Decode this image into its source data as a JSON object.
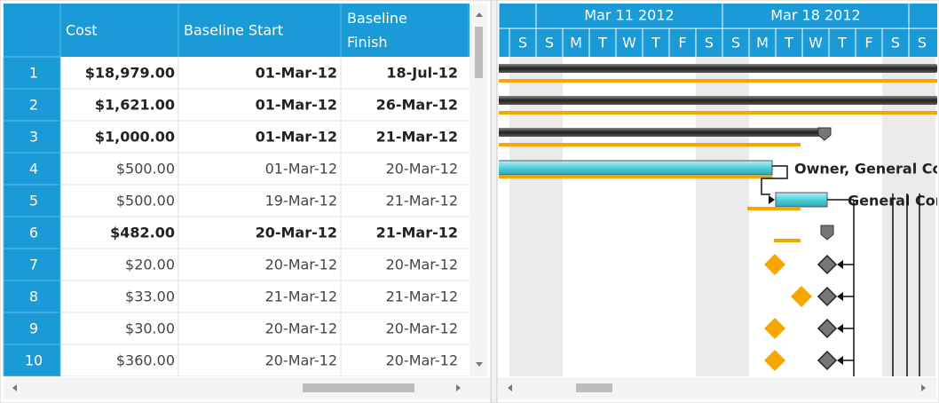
{
  "grid": {
    "columns": [
      "Cost",
      "Baseline Start",
      "Baseline Finish"
    ],
    "rows": [
      {
        "id": "1",
        "cost": "$18,979.00",
        "start": "01-Mar-12",
        "finish": "18-Jul-12",
        "bold": true
      },
      {
        "id": "2",
        "cost": "$1,621.00",
        "start": "01-Mar-12",
        "finish": "26-Mar-12",
        "bold": true
      },
      {
        "id": "3",
        "cost": "$1,000.00",
        "start": "01-Mar-12",
        "finish": "21-Mar-12",
        "bold": true
      },
      {
        "id": "4",
        "cost": "$500.00",
        "start": "01-Mar-12",
        "finish": "20-Mar-12",
        "bold": false
      },
      {
        "id": "5",
        "cost": "$500.00",
        "start": "19-Mar-12",
        "finish": "21-Mar-12",
        "bold": false
      },
      {
        "id": "6",
        "cost": "$482.00",
        "start": "20-Mar-12",
        "finish": "21-Mar-12",
        "bold": true
      },
      {
        "id": "7",
        "cost": "$20.00",
        "start": "20-Mar-12",
        "finish": "20-Mar-12",
        "bold": false
      },
      {
        "id": "8",
        "cost": "$33.00",
        "start": "21-Mar-12",
        "finish": "21-Mar-12",
        "bold": false
      },
      {
        "id": "9",
        "cost": "$30.00",
        "start": "20-Mar-12",
        "finish": "20-Mar-12",
        "bold": false
      },
      {
        "id": "10",
        "cost": "$360.00",
        "start": "20-Mar-12",
        "finish": "20-Mar-12",
        "bold": false
      }
    ]
  },
  "gantt": {
    "weeks": [
      "Mar 11 2012",
      "Mar 18 2012"
    ],
    "days": [
      "S",
      "S",
      "M",
      "T",
      "W",
      "T",
      "F",
      "S",
      "S",
      "M",
      "T",
      "W",
      "T",
      "F",
      "S",
      "S"
    ],
    "labels": [
      "Owner, General Co",
      "General Cor"
    ]
  }
}
